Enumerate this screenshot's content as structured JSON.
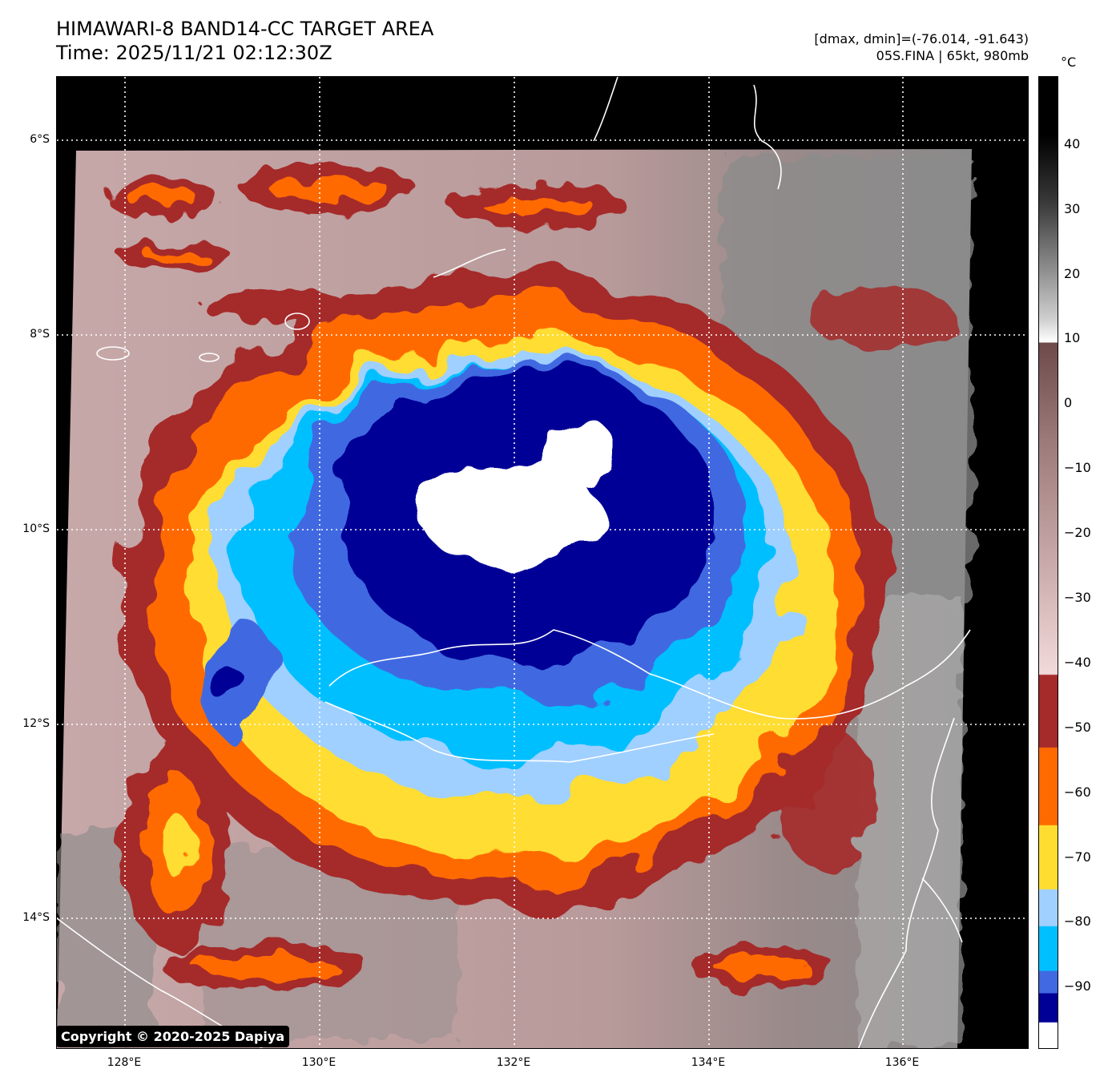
{
  "title": {
    "line1": "HIMAWARI-8 BAND14-CC TARGET AREA",
    "line2": "Time: 2025/11/21 02:12:30Z"
  },
  "header_right": {
    "line1": "[dmax, dmin]=(-76.014, -91.643)",
    "line2": "05S.FINA | 65kt, 980mb"
  },
  "colorbar": {
    "unit": "°C",
    "ticks": [
      "40",
      "30",
      "20",
      "10",
      "0",
      "−10",
      "−20",
      "−30",
      "−40",
      "−50",
      "−60",
      "−70",
      "−80",
      "−90"
    ]
  },
  "axes": {
    "lat_labels": [
      "6°S",
      "8°S",
      "10°S",
      "12°S",
      "14°S"
    ],
    "lon_labels": [
      "128°E",
      "130°E",
      "132°E",
      "134°E",
      "136°E"
    ]
  },
  "copyright": "Copyright © 2020-2025 Dapiya",
  "colors": {
    "white_core": "#ffffff",
    "navy": "#000096",
    "royal_blue": "#4169e1",
    "deep_sky": "#00bfff",
    "light_blue": "#a0d0ff",
    "gold": "#ffdd30",
    "orange": "#ff6a00",
    "dark_red": "#a52a2a",
    "rose": "#c9a9a9",
    "gray": "#9a9a9a"
  }
}
